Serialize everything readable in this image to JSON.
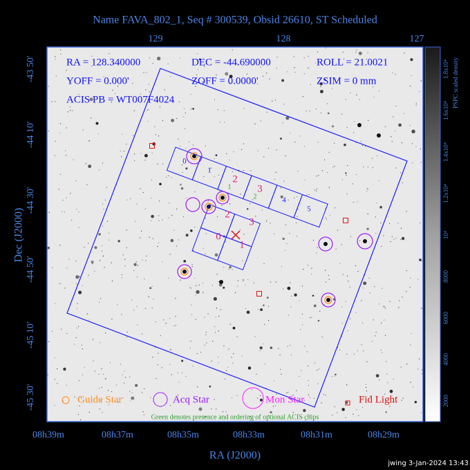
{
  "title": "Name FAVA_802_1, Seq # 300539, Obsid 26610, ST Scheduled",
  "info": [
    [
      "RA = 128.340000",
      "DEC = -44.690000",
      "ROLL = 21.0021"
    ],
    [
      "YOFF =   0.000'",
      "ZOFF =  0.0000'",
      "ZSIM = 0 mm"
    ],
    [
      "ACIS PB = WT007F4024"
    ]
  ],
  "top_axis": [
    "129",
    "128",
    "127"
  ],
  "left_axis": [
    "-43 50'",
    "-44 10'",
    "-44 30'",
    "-44 50'",
    "-45 10'",
    "-45 30'"
  ],
  "bottom_axis": [
    "08h39m",
    "08h37m",
    "08h35m",
    "08h33m",
    "08h31m",
    "08h29m"
  ],
  "x_title": "RA (J2000)",
  "y_title": "Dec (J2000)",
  "colorbar": {
    "title": "PSPC scaled density",
    "labels": [
      "2000",
      "4000",
      "6000",
      "8000",
      "10⁴",
      "1.2x10⁴",
      "1.4x10⁴",
      "1.6x10⁴",
      "1.8x10⁴"
    ]
  },
  "chips": {
    "s_array": [
      "0",
      "1",
      "2",
      "3",
      "4",
      "5"
    ],
    "i_array": [
      "0",
      "1",
      "2",
      "3"
    ],
    "optional": [
      "1",
      "2"
    ]
  },
  "legend": [
    "Guide Star",
    "Acq Star",
    "Mon Star",
    "Fid Light"
  ],
  "note": "Green denotes presence and ordering of optional ACIS chips",
  "footer": "jwing  3-Jan-2024 13:43"
}
